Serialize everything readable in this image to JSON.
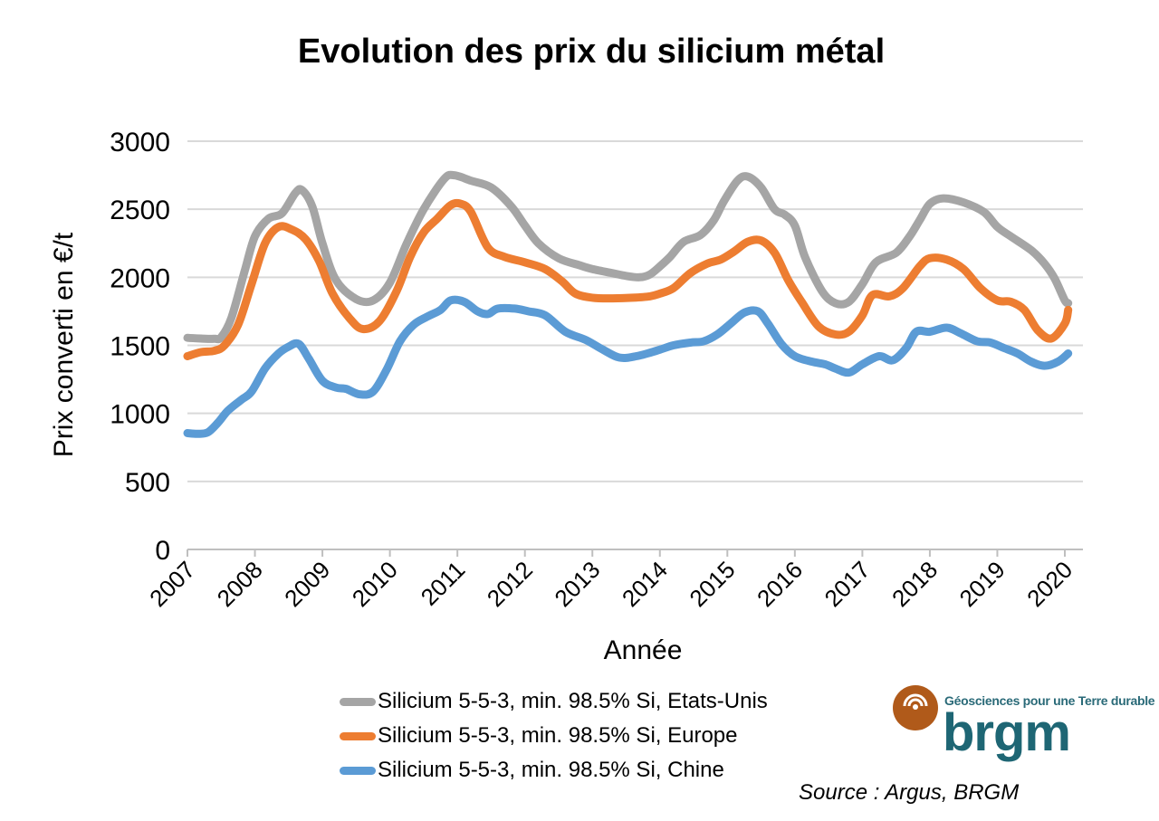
{
  "chart_data": {
    "type": "line",
    "title": "Evolution des prix du silicium métal",
    "xlabel": "Année",
    "ylabel": "Prix converti en €/t",
    "ylim": [
      0,
      3000
    ],
    "yticks": [
      0,
      500,
      1000,
      1500,
      2000,
      2500,
      3000
    ],
    "xlim": [
      2007,
      2020.05
    ],
    "xticks": [
      "2007",
      "2008",
      "2009",
      "2010",
      "2011",
      "2012",
      "2013",
      "2014",
      "2015",
      "2016",
      "2017",
      "2018",
      "2019",
      "2020"
    ],
    "grid": true,
    "legend_position": "bottom",
    "series": [
      {
        "name": "Silicium 5-5-3, min. 98.5% Si, Etats-Unis",
        "color": "#a5a5a5",
        "x": [
          2007.0,
          2007.2,
          2007.4,
          2007.5,
          2007.65,
          2007.85,
          2008.0,
          2008.2,
          2008.4,
          2008.6,
          2008.7,
          2008.85,
          2009.0,
          2009.2,
          2009.5,
          2009.75,
          2010.0,
          2010.25,
          2010.5,
          2010.8,
          2010.95,
          2011.2,
          2011.5,
          2011.8,
          2012.0,
          2012.2,
          2012.5,
          2012.8,
          2013.0,
          2013.3,
          2013.5,
          2013.7,
          2013.85,
          2014.0,
          2014.15,
          2014.35,
          2014.6,
          2014.8,
          2014.95,
          2015.15,
          2015.3,
          2015.5,
          2015.7,
          2015.85,
          2016.0,
          2016.15,
          2016.4,
          2016.6,
          2016.8,
          2017.0,
          2017.2,
          2017.5,
          2017.7,
          2017.85,
          2018.0,
          2018.2,
          2018.5,
          2018.8,
          2019.0,
          2019.2,
          2019.5,
          2019.7,
          2019.85,
          2020.0,
          2020.05
        ],
        "y": [
          1555,
          1550,
          1548,
          1560,
          1700,
          2050,
          2300,
          2430,
          2470,
          2620,
          2640,
          2520,
          2250,
          1980,
          1840,
          1830,
          1960,
          2250,
          2500,
          2720,
          2750,
          2710,
          2660,
          2520,
          2380,
          2250,
          2140,
          2090,
          2060,
          2030,
          2010,
          2000,
          2020,
          2080,
          2150,
          2260,
          2310,
          2420,
          2560,
          2710,
          2740,
          2660,
          2500,
          2460,
          2380,
          2150,
          1900,
          1810,
          1820,
          1950,
          2110,
          2180,
          2300,
          2420,
          2540,
          2580,
          2550,
          2480,
          2370,
          2300,
          2200,
          2100,
          1990,
          1830,
          1810
        ]
      },
      {
        "name": "Silicium 5-5-3, min. 98.5% Si, Europe",
        "color": "#ed7d31",
        "x": [
          2007.0,
          2007.2,
          2007.4,
          2007.55,
          2007.75,
          2007.95,
          2008.15,
          2008.35,
          2008.55,
          2008.75,
          2008.95,
          2009.15,
          2009.4,
          2009.6,
          2009.85,
          2010.1,
          2010.3,
          2010.5,
          2010.7,
          2010.9,
          2011.05,
          2011.2,
          2011.45,
          2011.7,
          2012.0,
          2012.3,
          2012.55,
          2012.75,
          2013.0,
          2013.3,
          2013.6,
          2013.85,
          2014.0,
          2014.2,
          2014.45,
          2014.7,
          2014.9,
          2015.1,
          2015.3,
          2015.5,
          2015.7,
          2015.9,
          2016.1,
          2016.35,
          2016.6,
          2016.8,
          2017.0,
          2017.15,
          2017.4,
          2017.6,
          2017.85,
          2018.0,
          2018.25,
          2018.5,
          2018.75,
          2019.0,
          2019.2,
          2019.4,
          2019.6,
          2019.8,
          2020.0,
          2020.05
        ],
        "y": [
          1420,
          1450,
          1460,
          1500,
          1650,
          1950,
          2250,
          2370,
          2350,
          2280,
          2120,
          1880,
          1700,
          1620,
          1680,
          1900,
          2150,
          2330,
          2430,
          2530,
          2540,
          2480,
          2220,
          2150,
          2110,
          2060,
          1970,
          1880,
          1850,
          1845,
          1850,
          1860,
          1880,
          1920,
          2030,
          2100,
          2130,
          2190,
          2260,
          2270,
          2180,
          1980,
          1820,
          1640,
          1580,
          1600,
          1720,
          1870,
          1860,
          1920,
          2080,
          2140,
          2130,
          2060,
          1920,
          1830,
          1820,
          1760,
          1610,
          1550,
          1660,
          1760
        ]
      },
      {
        "name": "Silicium 5-5-3, min. 98.5% Si, Chine",
        "color": "#5b9bd5",
        "x": [
          2007.0,
          2007.15,
          2007.3,
          2007.45,
          2007.6,
          2007.8,
          2007.95,
          2008.15,
          2008.35,
          2008.5,
          2008.65,
          2008.8,
          2009.0,
          2009.2,
          2009.35,
          2009.55,
          2009.75,
          2009.95,
          2010.15,
          2010.35,
          2010.55,
          2010.75,
          2010.9,
          2011.1,
          2011.3,
          2011.45,
          2011.6,
          2011.85,
          2012.05,
          2012.3,
          2012.6,
          2012.9,
          2013.15,
          2013.4,
          2013.65,
          2013.95,
          2014.2,
          2014.45,
          2014.65,
          2014.85,
          2015.05,
          2015.25,
          2015.45,
          2015.6,
          2015.8,
          2016.0,
          2016.25,
          2016.45,
          2016.6,
          2016.8,
          2017.0,
          2017.25,
          2017.45,
          2017.65,
          2017.8,
          2018.0,
          2018.25,
          2018.45,
          2018.7,
          2018.9,
          2019.1,
          2019.3,
          2019.5,
          2019.7,
          2019.9,
          2020.05
        ],
        "y": [
          855,
          850,
          860,
          930,
          1020,
          1100,
          1160,
          1330,
          1440,
          1490,
          1510,
          1400,
          1240,
          1190,
          1180,
          1140,
          1160,
          1320,
          1530,
          1650,
          1710,
          1760,
          1830,
          1820,
          1750,
          1730,
          1770,
          1770,
          1750,
          1720,
          1600,
          1540,
          1470,
          1410,
          1420,
          1460,
          1500,
          1520,
          1530,
          1580,
          1660,
          1740,
          1750,
          1660,
          1510,
          1420,
          1380,
          1360,
          1330,
          1300,
          1360,
          1420,
          1390,
          1480,
          1600,
          1600,
          1630,
          1590,
          1530,
          1520,
          1480,
          1440,
          1380,
          1350,
          1380,
          1440
        ]
      }
    ]
  },
  "source": "Source : Argus, BRGM",
  "logo": {
    "tagline": "Géosciences pour une Terre durable",
    "wordmark": "brgm",
    "brand_color": "#1e6674",
    "circle_color": "#b05a1a"
  }
}
